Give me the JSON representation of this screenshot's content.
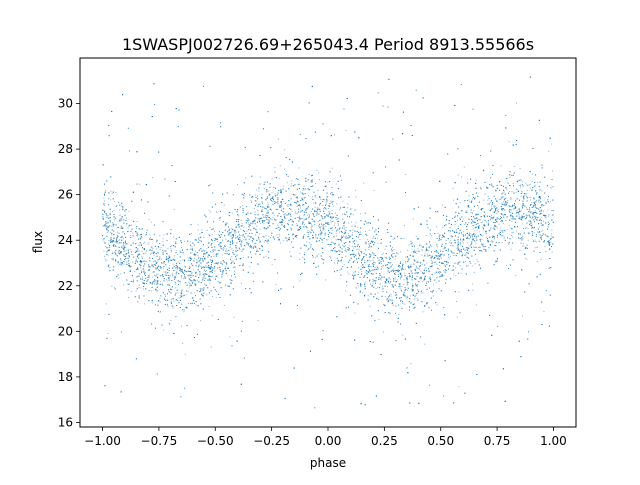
{
  "chart_data": {
    "type": "scatter",
    "title": "1SWASPJ002726.69+265043.4 Period 8913.55566s",
    "xlabel": "phase",
    "ylabel": "flux",
    "xlim": [
      -1.1,
      1.1
    ],
    "ylim": [
      15.8,
      32.0
    ],
    "xticks": [
      -1.0,
      -0.75,
      -0.5,
      -0.25,
      0.0,
      0.25,
      0.5,
      0.75,
      1.0
    ],
    "xtick_labels": [
      "−1.00",
      "−0.75",
      "−0.50",
      "−0.25",
      "0.00",
      "0.25",
      "0.50",
      "0.75",
      "1.00"
    ],
    "yticks": [
      16,
      18,
      20,
      22,
      24,
      26,
      28,
      30
    ],
    "ytick_labels": [
      "16",
      "18",
      "20",
      "22",
      "24",
      "26",
      "28",
      "30"
    ],
    "grid": false,
    "legend": "none",
    "point_color": "#1f77b4",
    "series": [
      {
        "phase_range": [
          -1.0,
          1.0
        ],
        "mean_flux": 23.9,
        "amplitude": 1.35,
        "peak_phase": -0.17,
        "band_halfwidth": 1.6,
        "outlier_range": [
          16.6,
          31.2
        ],
        "sample_profile": [
          {
            "phase": -1.0,
            "flux": 24.6
          },
          {
            "phase": -0.75,
            "flux": 22.9
          },
          {
            "phase": -0.67,
            "flux": 22.6
          },
          {
            "phase": -0.5,
            "flux": 23.0
          },
          {
            "phase": -0.25,
            "flux": 24.9
          },
          {
            "phase": -0.17,
            "flux": 25.2
          },
          {
            "phase": 0.0,
            "flux": 24.8
          },
          {
            "phase": 0.25,
            "flux": 22.9
          },
          {
            "phase": 0.33,
            "flux": 22.6
          },
          {
            "phase": 0.5,
            "flux": 23.0
          },
          {
            "phase": 0.75,
            "flux": 24.9
          },
          {
            "phase": 0.83,
            "flux": 25.2
          },
          {
            "phase": 1.0,
            "flux": 24.6
          }
        ]
      }
    ]
  }
}
